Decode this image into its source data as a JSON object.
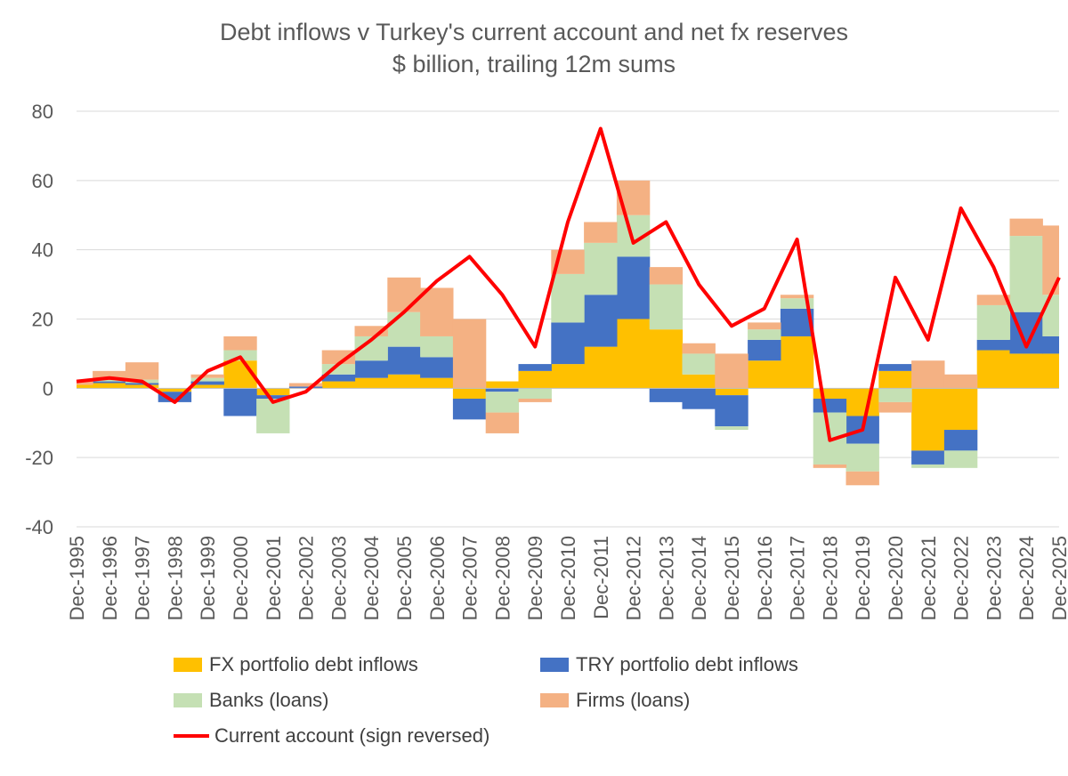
{
  "chart_data": {
    "type": "area",
    "title": "Debt inflows v Turkey's current account and net fx reserves",
    "subtitle": "$ billion, trailing 12m sums",
    "xlabel": "",
    "ylabel": "",
    "ylim": [
      -40,
      80
    ],
    "yticks": [
      "80",
      "60",
      "40",
      "20",
      "0",
      "-20",
      "-40"
    ],
    "grid": true,
    "legend_position": "bottom",
    "x": [
      "Dec-1995",
      "Dec-1996",
      "Dec-1997",
      "Dec-1998",
      "Dec-1999",
      "Dec-2000",
      "Dec-2001",
      "Dec-2002",
      "Dec-2003",
      "Dec-2004",
      "Dec-2005",
      "Dec-2006",
      "Dec-2007",
      "Dec-2008",
      "Dec-2009",
      "Dec-2010",
      "Dec-2011",
      "Dec-2012",
      "Dec-2013",
      "Dec-2014",
      "Dec-2015",
      "Dec-2016",
      "Dec-2017",
      "Dec-2018",
      "Dec-2019",
      "Dec-2020",
      "Dec-2021",
      "Dec-2022",
      "Dec-2023",
      "Dec-2024",
      "Dec-2025"
    ],
    "series": [
      {
        "name": "FX portfolio debt inflows",
        "kind": "stacked-area",
        "color": "#FFC000",
        "values": [
          1,
          1.5,
          1,
          -1,
          1,
          8,
          -2,
          0,
          2,
          3,
          4,
          3,
          -3,
          2,
          5,
          7,
          12,
          20,
          17,
          4,
          -2,
          8,
          15,
          -3,
          -8,
          5,
          -18,
          -12,
          11,
          10,
          10
        ]
      },
      {
        "name": "TRY portfolio debt inflows",
        "kind": "stacked-area",
        "color": "#4472C4",
        "values": [
          0,
          0.5,
          0.5,
          -3,
          1,
          -8,
          -1,
          0.5,
          2,
          5,
          8,
          6,
          -6,
          -1,
          2,
          12,
          15,
          18,
          -4,
          -6,
          -9,
          6,
          8,
          -4,
          -8,
          2,
          -4,
          -6,
          3,
          12,
          5
        ]
      },
      {
        "name": "Banks (loans)",
        "kind": "stacked-area",
        "color": "#C5E0B4",
        "values": [
          0,
          1,
          1,
          0,
          1,
          3,
          -10,
          0,
          3,
          7,
          10,
          6,
          0,
          -6,
          -3,
          14,
          15,
          12,
          13,
          6,
          -1,
          3,
          3,
          -15,
          -8,
          -4,
          -1,
          -5,
          10,
          22,
          12
        ]
      },
      {
        "name": "Firms (loans)",
        "kind": "stacked-area",
        "color": "#F4B183",
        "values": [
          1,
          2,
          5,
          0,
          1,
          4,
          0,
          1,
          4,
          3,
          10,
          14,
          20,
          -6,
          -1,
          7,
          6,
          10,
          5,
          3,
          10,
          2,
          1,
          -1,
          -4,
          -3,
          8,
          4,
          3,
          5,
          20
        ]
      },
      {
        "name": "Current account (sign reversed)",
        "kind": "line",
        "color": "#FF0000",
        "values": [
          2,
          3,
          2,
          -4,
          5,
          9,
          -4,
          -1,
          7,
          14,
          22,
          31,
          38,
          27,
          12,
          48,
          75,
          42,
          48,
          30,
          18,
          23,
          43,
          -15,
          -12,
          32,
          14,
          52,
          35,
          12,
          32
        ]
      }
    ]
  }
}
